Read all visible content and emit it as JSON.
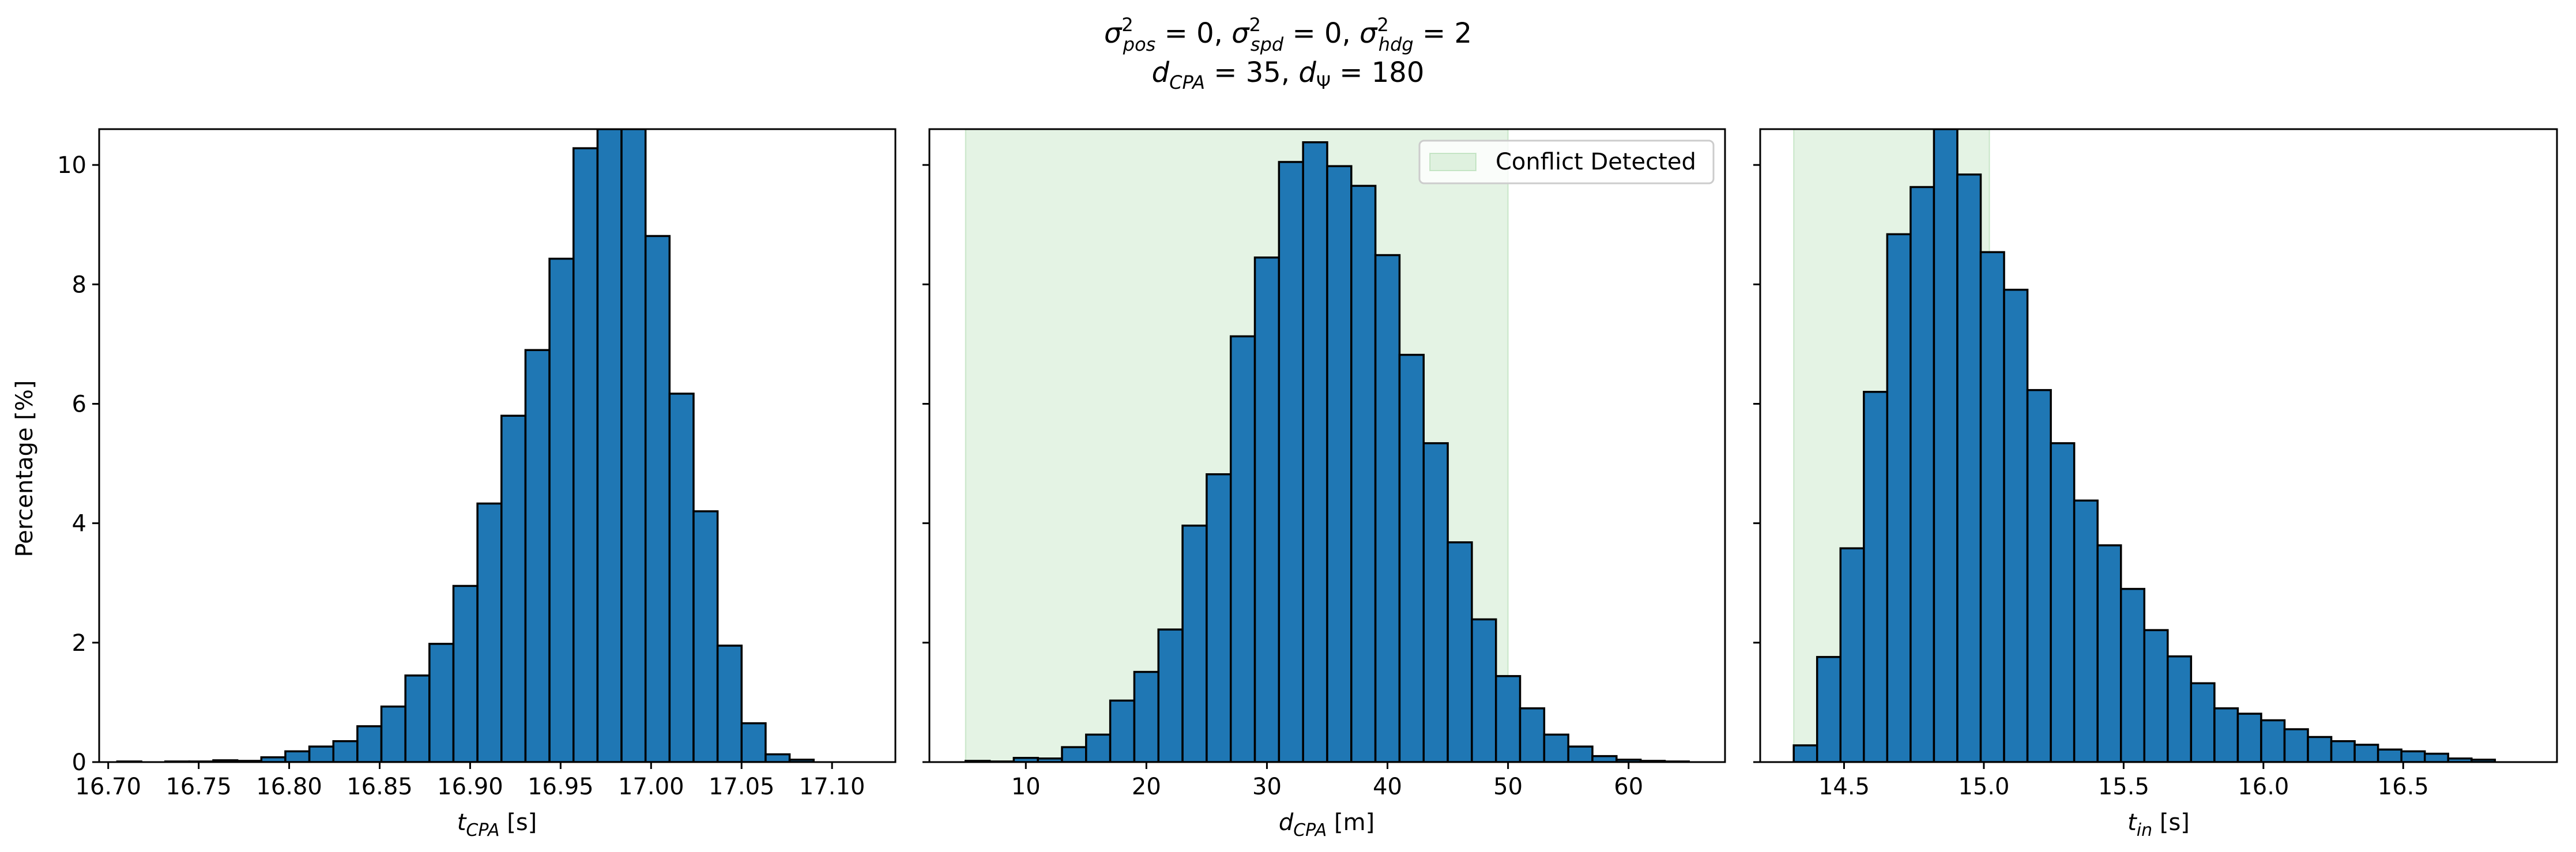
{
  "figure": {
    "title_line1": "σ²_pos = 0, σ²_spd = 0, σ²_hdg = 2",
    "title_line2": "d_CPA = 35, d_Ψ = 180",
    "ylabel": "Percentage [%]"
  },
  "legend": {
    "label": "Conflict Detected",
    "color": "#2ca02c"
  },
  "bar_color": "#1f77b4",
  "chart_data": [
    {
      "type": "bar",
      "subtype": "histogram",
      "xlabel": "t_CPA [s]",
      "ylabel": "Percentage [%]",
      "xlim": [
        16.695,
        17.135
      ],
      "ylim": [
        0,
        10.6
      ],
      "xticks": [
        16.7,
        16.75,
        16.8,
        16.85,
        16.9,
        16.95,
        17.0,
        17.05,
        17.1
      ],
      "yticks": [
        0,
        2,
        4,
        6,
        8,
        10
      ],
      "bin_start": 16.705,
      "bin_width": 0.01327,
      "values": [
        0.01,
        0.0,
        0.01,
        0.01,
        0.03,
        0.02,
        0.08,
        0.18,
        0.26,
        0.35,
        0.6,
        0.93,
        1.45,
        1.98,
        2.95,
        4.33,
        5.8,
        6.9,
        8.43,
        10.28,
        10.6,
        10.6,
        8.81,
        6.17,
        4.2,
        1.95,
        0.65,
        0.13,
        0.04
      ],
      "shaded_region": null
    },
    {
      "type": "bar",
      "subtype": "histogram",
      "xlabel": "d_CPA [m]",
      "ylabel": "",
      "xlim": [
        2.0,
        68.0
      ],
      "ylim": [
        0,
        10.6
      ],
      "xticks": [
        10,
        20,
        30,
        40,
        50,
        60
      ],
      "yticks": [
        0,
        2,
        4,
        6,
        8,
        10
      ],
      "bin_start": 5.0,
      "bin_width": 2.0,
      "values": [
        0.02,
        0.01,
        0.07,
        0.06,
        0.25,
        0.46,
        1.03,
        1.51,
        2.22,
        3.96,
        4.82,
        7.13,
        8.45,
        10.05,
        10.38,
        9.98,
        9.65,
        8.49,
        6.82,
        5.34,
        3.68,
        2.39,
        1.44,
        0.9,
        0.46,
        0.26,
        0.1,
        0.04,
        0.02,
        0.01
      ],
      "shaded_region": [
        5.0,
        50.0
      ]
    },
    {
      "type": "bar",
      "subtype": "histogram",
      "xlabel": "t_in [s]",
      "ylabel": "",
      "xlim": [
        14.2,
        17.05
      ],
      "ylim": [
        0,
        10.6
      ],
      "xticks": [
        14.5,
        15.0,
        15.5,
        16.0,
        16.5
      ],
      "yticks": [
        0,
        2,
        4,
        6,
        8,
        10
      ],
      "bin_start": 14.32,
      "bin_width": 0.0836,
      "values": [
        0.28,
        1.76,
        3.58,
        6.2,
        8.84,
        9.63,
        10.6,
        9.84,
        8.54,
        7.91,
        6.23,
        5.34,
        4.38,
        3.63,
        2.9,
        2.21,
        1.77,
        1.32,
        0.9,
        0.81,
        0.7,
        0.55,
        0.42,
        0.35,
        0.29,
        0.21,
        0.18,
        0.14,
        0.06,
        0.04
      ],
      "shaded_region": [
        14.32,
        15.02
      ]
    }
  ]
}
